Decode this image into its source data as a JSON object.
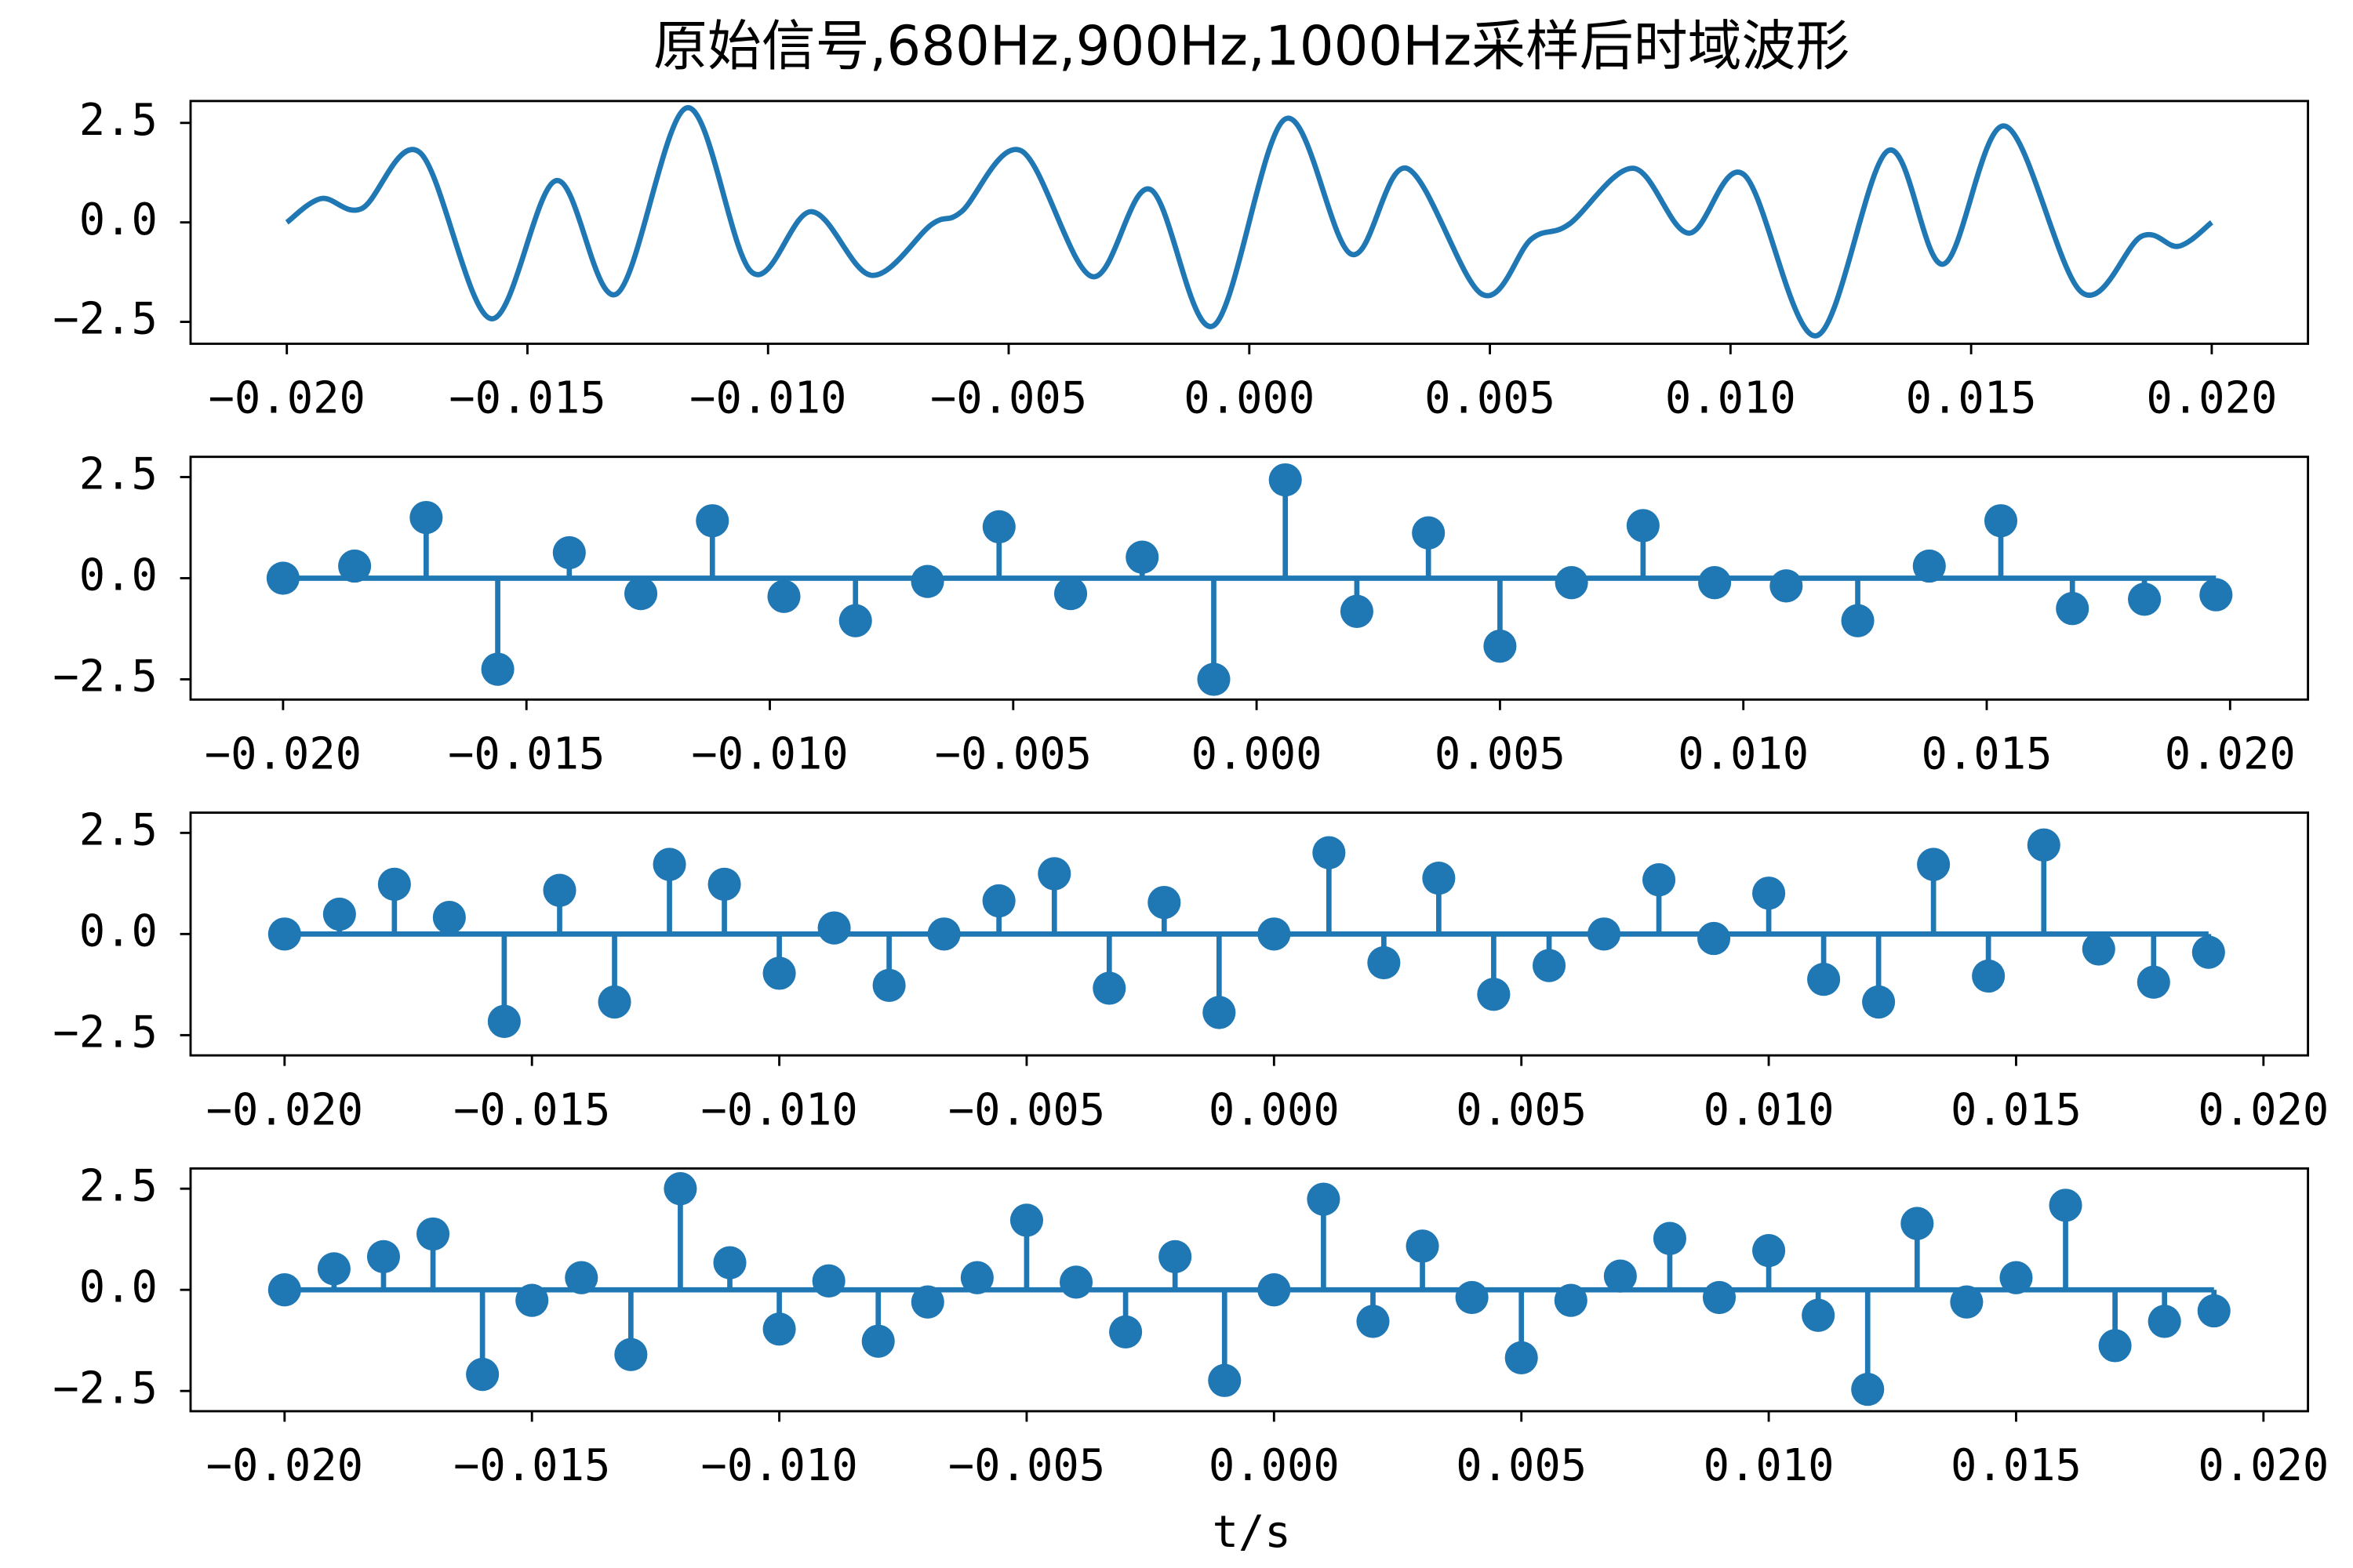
{
  "chart_data": [
    {
      "type": "line",
      "title": "原始信号,680Hz,900Hz,1000Hz采样后时域波形",
      "color": "#1f77b4",
      "x": [
        -0.02,
        -0.01928,
        -0.01844,
        -0.01723,
        -0.01576,
        -0.0144,
        -0.01315,
        -0.01168,
        -0.01034,
        -0.0091,
        -0.00785,
        -0.0066,
        -0.00598,
        -0.00474,
        -0.00327,
        -0.00206,
        -0.00075,
        0.00075,
        0.00212,
        0.00327,
        0.00483,
        0.00586,
        0.00664,
        0.00798,
        0.00913,
        0.01028,
        0.01178,
        0.01327,
        0.01442,
        0.0157,
        0.01729,
        0.01854,
        0.01931,
        0.02
      ],
      "values": [
        0,
        0.6,
        0.35,
        1.75,
        -2.42,
        1.05,
        -1.8,
        2.88,
        -1.25,
        0.27,
        -1.33,
        -0.05,
        0.27,
        1.8,
        -1.36,
        0.83,
        -2.6,
        2.6,
        -0.8,
        1.36,
        -1.8,
        -0.42,
        -0.05,
        1.36,
        -0.27,
        1.2,
        -2.85,
        1.8,
        -1.05,
        2.42,
        -1.75,
        -0.35,
        -0.6,
        0
      ],
      "xlim": [
        -0.022,
        0.022
      ],
      "ylim": [
        -3.05,
        3.05
      ],
      "xticks": [
        {
          "value": -0.02,
          "label": "−0.020"
        },
        {
          "value": -0.015,
          "label": "−0.015"
        },
        {
          "value": -0.01,
          "label": "−0.010"
        },
        {
          "value": -0.005,
          "label": "−0.005"
        },
        {
          "value": 0,
          "label": "0.000"
        },
        {
          "value": 0.005,
          "label": "0.005"
        },
        {
          "value": 0.01,
          "label": "0.010"
        },
        {
          "value": 0.015,
          "label": "0.015"
        },
        {
          "value": 0.02,
          "label": "0.020"
        }
      ],
      "yticks": [
        {
          "value": -2.5,
          "label": "−2.5"
        },
        {
          "value": 0,
          "label": "0.0"
        },
        2.5
      ]
    },
    {
      "type": "stem",
      "color": "#1f77b4",
      "x": [
        -0.02,
        -0.01853,
        -0.01706,
        -0.01559,
        -0.01412,
        -0.01265,
        -0.01118,
        -0.00971,
        -0.00824,
        -0.00676,
        -0.00529,
        -0.00382,
        -0.00235,
        -0.00088,
        0.00059,
        0.00206,
        0.00353,
        0.005,
        0.00647,
        0.00794,
        0.00941,
        0.01088,
        0.01235,
        0.01382,
        0.01529,
        0.01676,
        0.01824,
        0.01971
      ],
      "values": [
        0,
        0.3,
        1.5,
        -2.25,
        0.63,
        -0.38,
        1.42,
        -0.45,
        -1.05,
        -0.08,
        1.27,
        -0.38,
        0.52,
        -2.5,
        2.43,
        -0.82,
        1.12,
        -1.68,
        -0.11,
        1.3,
        -0.11,
        -0.19,
        -1.05,
        0.3,
        1.42,
        -0.75,
        -0.52,
        -0.41
      ],
      "xlim": [
        -0.0219,
        0.0216
      ],
      "ylim": [
        -3,
        3
      ],
      "xticks": [
        {
          "value": -0.02,
          "label": "−0.020"
        },
        {
          "value": -0.015,
          "label": "−0.015"
        },
        {
          "value": -0.01,
          "label": "−0.010"
        },
        {
          "value": -0.005,
          "label": "−0.005"
        },
        {
          "value": 0,
          "label": "0.000"
        },
        {
          "value": 0.005,
          "label": "0.005"
        },
        {
          "value": 0.01,
          "label": "0.010"
        },
        {
          "value": 0.015,
          "label": "0.015"
        },
        {
          "value": 0.02,
          "label": "0.020"
        }
      ],
      "yticks": [
        {
          "value": -2.5,
          "label": "−2.5"
        },
        {
          "value": 0,
          "label": "0.0"
        },
        2.5
      ]
    },
    {
      "type": "stem",
      "color": "#1f77b4",
      "x": [
        -0.02,
        -0.01889,
        -0.01778,
        -0.01667,
        -0.01556,
        -0.01444,
        -0.01333,
        -0.01222,
        -0.01111,
        -0.01,
        -0.00889,
        -0.00778,
        -0.00667,
        -0.00556,
        -0.00444,
        -0.00333,
        -0.00222,
        -0.00111,
        0,
        0.00111,
        0.00222,
        0.00333,
        0.00444,
        0.00556,
        0.00667,
        0.00778,
        0.00889,
        0.01,
        0.01111,
        0.01222,
        0.01333,
        0.01444,
        0.01556,
        0.01667,
        0.01778,
        0.01889
      ],
      "values": [
        0,
        0.49,
        1.23,
        0.41,
        -2.16,
        1.08,
        -1.68,
        1.72,
        1.23,
        -0.97,
        0.15,
        -1.27,
        0,
        0.82,
        1.49,
        -1.34,
        0.78,
        -1.94,
        0,
        2.01,
        -0.71,
        1.38,
        -1.49,
        -0.78,
        0,
        1.34,
        -0.11,
        1.01,
        -1.12,
        -1.68,
        1.72,
        -1.04,
        2.2,
        -0.37,
        -1.19,
        -0.45
      ],
      "xlim": [
        -0.0219,
        0.0209
      ],
      "ylim": [
        -3,
        3
      ],
      "xticks": [
        {
          "value": -0.02,
          "label": "−0.020"
        },
        {
          "value": -0.015,
          "label": "−0.015"
        },
        {
          "value": -0.01,
          "label": "−0.010"
        },
        {
          "value": -0.005,
          "label": "−0.005"
        },
        {
          "value": 0,
          "label": "0.000"
        },
        {
          "value": 0.005,
          "label": "0.005"
        },
        {
          "value": 0.01,
          "label": "0.010"
        },
        {
          "value": 0.015,
          "label": "0.015"
        },
        {
          "value": 0.02,
          "label": "0.020"
        }
      ],
      "yticks": [
        {
          "value": -2.5,
          "label": "−2.5"
        },
        {
          "value": 0,
          "label": "0.0"
        },
        2.5
      ]
    },
    {
      "type": "stem",
      "color": "#1f77b4",
      "xlabel": "t/s",
      "x": [
        -0.02,
        -0.019,
        -0.018,
        -0.017,
        -0.016,
        -0.015,
        -0.014,
        -0.013,
        -0.012,
        -0.011,
        -0.01,
        -0.009,
        -0.008,
        -0.007,
        -0.006,
        -0.005,
        -0.004,
        -0.003,
        -0.002,
        -0.001,
        0,
        0.001,
        0.002,
        0.003,
        0.004,
        0.005,
        0.006,
        0.007,
        0.008,
        0.009,
        0.01,
        0.011,
        0.012,
        0.013,
        0.014,
        0.015,
        0.016,
        0.017,
        0.018,
        0.019
      ],
      "values": [
        0,
        0.52,
        0.82,
        1.38,
        -2.09,
        -0.26,
        0.3,
        -1.6,
        2.5,
        0.67,
        -0.97,
        0.22,
        -1.27,
        -0.3,
        0.3,
        1.72,
        0.19,
        -1.04,
        0.82,
        -2.24,
        0,
        2.24,
        -0.78,
        1.08,
        -0.19,
        -1.68,
        -0.26,
        0.34,
        1.27,
        -0.19,
        0.97,
        -0.63,
        -2.46,
        1.64,
        -0.3,
        0.3,
        2.09,
        -1.38,
        -0.78,
        -0.52
      ],
      "xlim": [
        -0.0219,
        0.0209
      ],
      "ylim": [
        -3,
        3
      ],
      "xticks": [
        {
          "value": -0.02,
          "label": "−0.020"
        },
        {
          "value": -0.015,
          "label": "−0.015"
        },
        {
          "value": -0.01,
          "label": "−0.010"
        },
        {
          "value": -0.005,
          "label": "−0.005"
        },
        {
          "value": 0,
          "label": "0.000"
        },
        {
          "value": 0.005,
          "label": "0.005"
        },
        {
          "value": 0.01,
          "label": "0.010"
        },
        {
          "value": 0.015,
          "label": "0.015"
        },
        {
          "value": 0.02,
          "label": "0.020"
        }
      ],
      "yticks": [
        {
          "value": -2.5,
          "label": "−2.5"
        },
        {
          "value": 0,
          "label": "0.0"
        },
        2.5
      ]
    }
  ]
}
